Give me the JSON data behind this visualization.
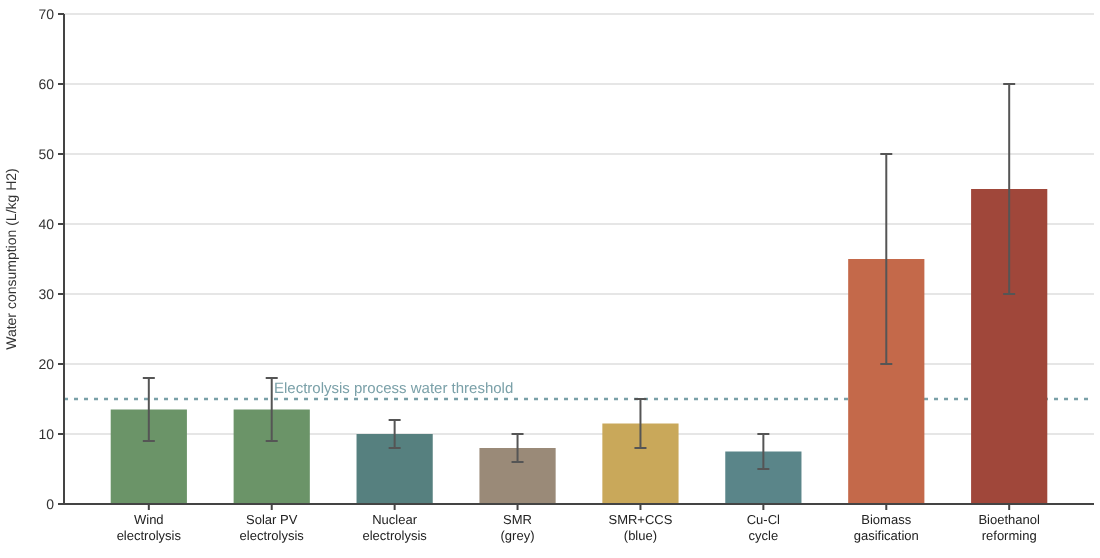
{
  "chart_data": {
    "type": "bar",
    "ylabel": "Water consumption (L/kg H2)",
    "categories": [
      "Wind\nelectrolysis",
      "Solar PV\nelectrolysis",
      "Nuclear\nelectrolysis",
      "SMR\n(grey)",
      "SMR+CCS\n(blue)",
      "Cu-Cl\ncycle",
      "Biomass\ngasification",
      "Bioethanol\nreforming"
    ],
    "values": [
      13.5,
      13.5,
      10,
      8,
      11.5,
      7.5,
      35,
      45
    ],
    "colors": [
      "#6b9468",
      "#6b9468",
      "#56807f",
      "#9a8a78",
      "#c9a85a",
      "#5a8589",
      "#c4694a",
      "#a0473a"
    ],
    "errors": [
      [
        9,
        18
      ],
      [
        9,
        18
      ],
      [
        8,
        12
      ],
      [
        6,
        10
      ],
      [
        8,
        15
      ],
      [
        5,
        10
      ],
      [
        20,
        50
      ],
      [
        30,
        60
      ]
    ],
    "ylim": [
      0,
      70
    ],
    "yticks": [
      0,
      10,
      20,
      30,
      40,
      50,
      60,
      70
    ],
    "grid": "y",
    "ref_lines": [
      {
        "axis": "y",
        "value": 15,
        "label": "Electrolysis process water threshold",
        "color": "#7aa0a8",
        "line_style": "dotted"
      }
    ]
  }
}
